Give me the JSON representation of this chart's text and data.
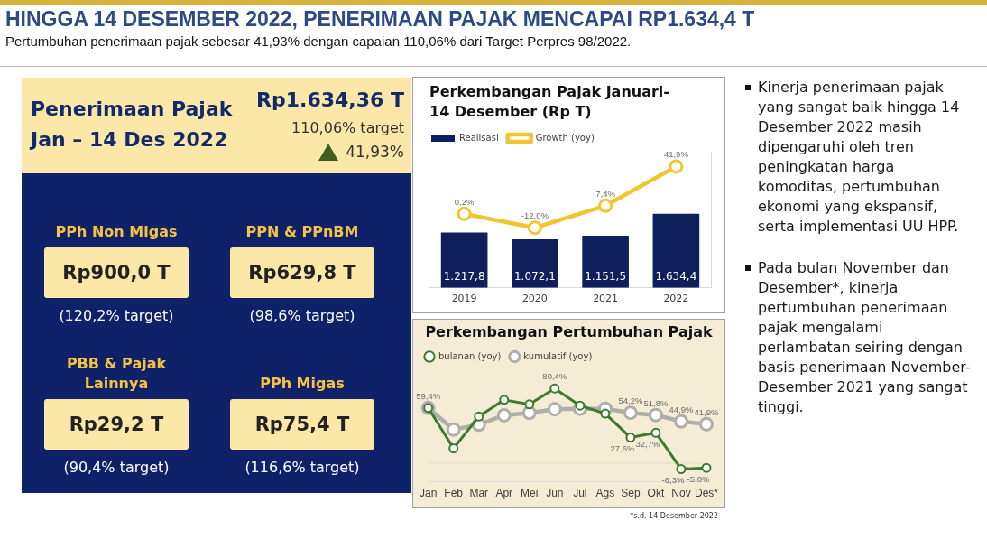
{
  "chart_data": [
    {
      "type": "other",
      "title": "HINGGA 14 DESEMBER 2022, PENERIMAAN PAJAK MENCAPAI RP1.634,4 T",
      "subtitle": "Pertumbuhan penerimaan pajak sebesar 41,93% dengan capaian 110,06% dari Target Perpres 98/2022."
    },
    {
      "type": "other",
      "title": "Penerimaan Pajak Jan – 14 Des 2022",
      "annotations": [
        "Rp1.634,36 T",
        "110,06% target",
        "41,93%",
        "PPh Non Migas",
        "Rp900,0 T",
        "(120,2% target)",
        "PPN & PPnBM",
        "Rp629,8 T",
        "(98,6% target)",
        "PBB & Pajak Lainnya",
        "Rp29,2 T",
        "(90,4% target)",
        "PPh Migas",
        "Rp75,4 T",
        "(116,6% target)"
      ]
    },
    {
      "type": "bar",
      "title": "Perkembangan Pajak Januari-14 Desember (Rp T)",
      "categories": [
        "2019",
        "2020",
        "2021",
        "2022"
      ],
      "tick_labels": "x",
      "legend": "top left",
      "marker": "circle",
      "ylim": [
        0,
        3000
      ],
      "y2lim": [
        -65,
        55
      ],
      "series": [
        {
          "name": "Realisasi",
          "type": "bar",
          "color": "#0e1f5b",
          "values": [
            1217.8,
            1072.1,
            1151.5,
            1634.4
          ],
          "value_labels": [
            "1.217,8",
            "1.072,1",
            "1.151,5",
            "1.634,4"
          ]
        },
        {
          "name": "Growth (yoy)",
          "type": "line",
          "axis": "y2",
          "color": "#f2c530",
          "values": [
            0.2,
            -12.0,
            7.4,
            41.9
          ],
          "value_labels": [
            "0,2%",
            "-12,0%",
            "7,4%",
            "41,9%"
          ]
        }
      ]
    },
    {
      "type": "line",
      "title": "Perkembangan Pertumbuhan Pajak",
      "categories": [
        "Jan",
        "Feb",
        "Mar",
        "Apr",
        "Mei",
        "Jun",
        "Jul",
        "Ags",
        "Sep",
        "Okt",
        "Nov",
        "Des*"
      ],
      "tick_labels": "x",
      "legend": "top left",
      "marker": "circle",
      "annotations": [
        "*s.d. 14 Desember 2022"
      ],
      "ref_lines": [
        {
          "axis": "y",
          "value": 0,
          "color": "#e2dccb"
        }
      ],
      "series": [
        {
          "name": "bulanan (yoy)",
          "color": "#3d7a2e",
          "values": [
            59.4,
            16.0,
            50.2,
            68.1,
            63.3,
            80.4,
            62.0,
            53.3,
            27.6,
            32.7,
            -6.3,
            -5.0
          ],
          "value_labels": [
            "59,4%",
            null,
            null,
            null,
            null,
            "80,4%",
            null,
            null,
            "27,6%",
            "32,7%",
            "-6,3%",
            "-5,0%"
          ]
        },
        {
          "name": "kumulatif (yoy)",
          "color": "#b0aeab",
          "values": [
            59.4,
            36.2,
            41.5,
            51.5,
            54.1,
            58.1,
            58.6,
            58.6,
            54.2,
            51.8,
            44.9,
            41.9
          ],
          "value_labels": [
            null,
            null,
            null,
            null,
            null,
            null,
            null,
            null,
            "54,2%",
            "51,8%",
            "44,9%",
            "41,9%"
          ]
        }
      ]
    },
    {
      "type": "other",
      "annotations": [
        "Kinerja penerimaan pajak yang sangat baik hingga 14 Desember 2022 masih dipengaruhi oleh tren peningkatan harga komoditas, pertumbuhan ekonomi yang ekspansif, serta implementasi UU HPP.",
        "Pada bulan November dan Desember*, kinerja pertumbuhan penerimaan pajak mengalami perlambatan seiring dengan basis penerimaan November-Desember 2021 yang sangat tinggi."
      ]
    }
  ]
}
